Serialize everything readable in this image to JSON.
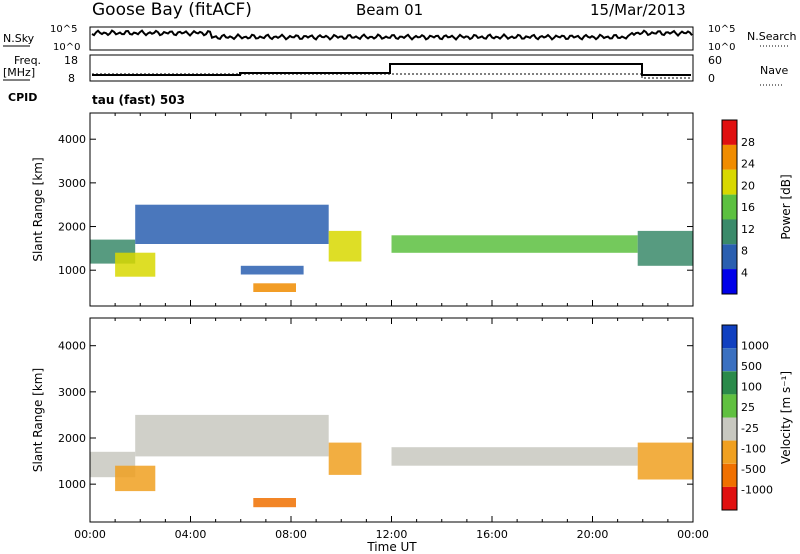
{
  "header": {
    "station": "Goose Bay (fitACF)",
    "beam": "Beam 01",
    "date": "15/Mar/2013"
  },
  "top_panels": {
    "nsky_label": "N.Sky",
    "nsky_ticks": [
      "10^5",
      "10^0"
    ],
    "nsearch_label": "N.Search",
    "nsearch_ticks": [
      "10^5",
      "10^0"
    ],
    "freq_label": "Freq.",
    "freq_unit": "[MHz]",
    "freq_ticks": [
      "18",
      "8"
    ],
    "nave_label": "Nave",
    "nave_ticks": [
      "60",
      "0"
    ],
    "cpid_label": "CPID",
    "cpid_value": "tau (fast) 503"
  },
  "chart_data": [
    {
      "type": "heatmap",
      "name": "power",
      "ylabel": "Slant Range [km]",
      "yticks": [
        "1000",
        "2000",
        "3000",
        "4000"
      ],
      "ylim": [
        180,
        4600
      ],
      "xlim": [
        0,
        24
      ],
      "colorbar_label": "Power [dB]",
      "colorbar_ticks": [
        "4",
        "8",
        "12",
        "16",
        "20",
        "24",
        "28"
      ],
      "colors": [
        "#0000e8",
        "#2a5fb0",
        "#3a8a6a",
        "#5cc040",
        "#d8d800",
        "#f08c00",
        "#e01010"
      ],
      "features": [
        {
          "t": [
            0.0,
            1.8
          ],
          "range": [
            1150,
            1700
          ],
          "level": 2
        },
        {
          "t": [
            1.0,
            2.6
          ],
          "range": [
            850,
            1400
          ],
          "level": 4
        },
        {
          "t": [
            1.8,
            9.5
          ],
          "range": [
            1600,
            2500
          ],
          "level": 1
        },
        {
          "t": [
            6.5,
            8.2
          ],
          "range": [
            500,
            700
          ],
          "level": 5
        },
        {
          "t": [
            6.0,
            8.5
          ],
          "range": [
            900,
            1100
          ],
          "level": 1
        },
        {
          "t": [
            9.5,
            10.8
          ],
          "range": [
            1200,
            1900
          ],
          "level": 4
        },
        {
          "t": [
            12.0,
            21.8
          ],
          "range": [
            1400,
            1800
          ],
          "level": 3
        },
        {
          "t": [
            21.8,
            24.0
          ],
          "range": [
            1100,
            1900
          ],
          "level": 2
        }
      ]
    },
    {
      "type": "heatmap",
      "name": "velocity",
      "xlabel": "Time UT",
      "ylabel": "Slant Range [km]",
      "xticks": [
        "00:00",
        "04:00",
        "08:00",
        "12:00",
        "16:00",
        "20:00",
        "00:00"
      ],
      "yticks": [
        "1000",
        "2000",
        "3000",
        "4000"
      ],
      "ylim": [
        180,
        4600
      ],
      "xlim": [
        0,
        24
      ],
      "colorbar_label": "Velocity [m s⁻¹]",
      "colorbar_ticks": [
        "1000",
        "500",
        "100",
        "25",
        "-25",
        "-100",
        "-500",
        "-1000"
      ],
      "colors": [
        "#1040c0",
        "#3a70c0",
        "#2a8a4a",
        "#60c040",
        "#c8c8c0",
        "#f0a020",
        "#f07000",
        "#e01010"
      ],
      "features": [
        {
          "t": [
            0.0,
            1.8
          ],
          "range": [
            1150,
            1700
          ],
          "level": 4
        },
        {
          "t": [
            1.0,
            2.6
          ],
          "range": [
            850,
            1400
          ],
          "level": 5
        },
        {
          "t": [
            1.8,
            9.5
          ],
          "range": [
            1600,
            2500
          ],
          "level": 4
        },
        {
          "t": [
            6.5,
            8.2
          ],
          "range": [
            500,
            700
          ],
          "level": 6
        },
        {
          "t": [
            9.5,
            10.8
          ],
          "range": [
            1200,
            1900
          ],
          "level": 5
        },
        {
          "t": [
            12.0,
            21.8
          ],
          "range": [
            1400,
            1800
          ],
          "level": 4
        },
        {
          "t": [
            21.8,
            24.0
          ],
          "range": [
            1100,
            1900
          ],
          "level": 5
        }
      ]
    }
  ]
}
